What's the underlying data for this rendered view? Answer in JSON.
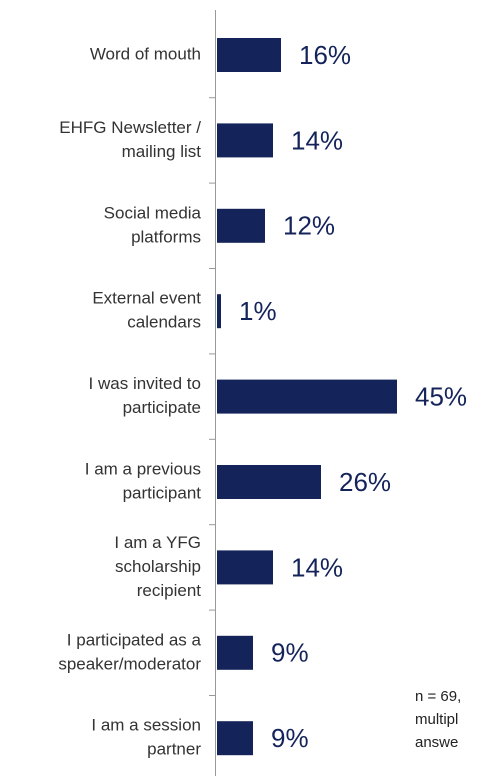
{
  "chart_data": {
    "type": "bar",
    "orientation": "horizontal",
    "categories": [
      [
        "Word of mouth"
      ],
      [
        "EHFG Newsletter /",
        "mailing list"
      ],
      [
        "Social media",
        "platforms"
      ],
      [
        "External event",
        "calendars"
      ],
      [
        "I was invited to",
        "participate"
      ],
      [
        "I am a previous",
        "participant"
      ],
      [
        "I am a YFG",
        "scholarship",
        "recipient"
      ],
      [
        "I participated as a",
        "speaker/moderator"
      ],
      [
        "I am a session",
        "partner"
      ]
    ],
    "values": [
      16,
      14,
      12,
      1,
      45,
      26,
      14,
      9,
      9
    ],
    "value_labels": [
      "16%",
      "14%",
      "12%",
      "1%",
      "45%",
      "26%",
      "14%",
      "9%",
      "9%"
    ],
    "color": "#14245a",
    "note": [
      "n = 69,",
      "multipl",
      "answe"
    ]
  }
}
